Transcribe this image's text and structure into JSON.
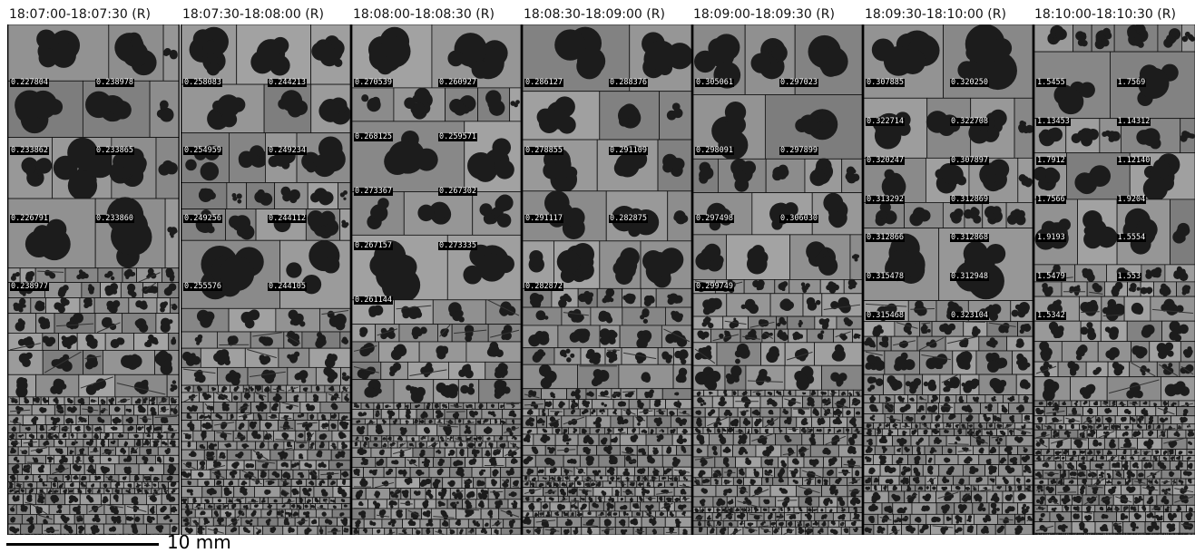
{
  "panels": [
    {
      "title": "18:07:00-18:07:30 (R)",
      "labels": [
        "0.227804",
        "0.238978",
        "0.233862",
        "0.233865",
        "0.226791",
        "0.233860",
        "0.238977"
      ]
    },
    {
      "title": "18:07:30-18:08:00 (R)",
      "labels": [
        "0.258083",
        "0.244213",
        "0.254959",
        "0.249234",
        "0.249256",
        "0.244112",
        "0.255576",
        "0.244105"
      ]
    },
    {
      "title": "18:08:00-18:08:30 (R)",
      "labels": [
        "0.270539",
        "0.260927",
        "0.268125",
        "0.259571",
        "0.273367",
        "0.267302",
        "0.267157",
        "0.273335",
        "0.261144"
      ]
    },
    {
      "title": "18:08:30-18:09:00 (R)",
      "labels": [
        "0.286127",
        "0.288376",
        "0.278855",
        "0.291109",
        "0.291117",
        "0.282875",
        "0.282872"
      ]
    },
    {
      "title": "18:09:00-18:09:30 (R)",
      "labels": [
        "0.305061",
        "0.297023",
        "0.298091",
        "0.297899",
        "0.297498",
        "0.306030",
        "0.299749"
      ]
    },
    {
      "title": "18:09:30-18:10:00 (R)",
      "labels": [
        "0.307885",
        "0.320250",
        "0.322714",
        "0.322708",
        "0.320247",
        "0.307897",
        "0.313292",
        "0.312869",
        "0.312866",
        "0.312868",
        "0.315478",
        "0.312948",
        "0.315468",
        "0.323104"
      ]
    },
    {
      "title": "18:10:00-18:10:30 (R)",
      "labels": [
        "1.5455",
        "1.7569",
        "1.13453",
        "1.14312",
        "1.7912",
        "1.12140",
        "1.7566",
        "1.9204",
        "1.9193",
        "1.5554",
        "1.5479",
        "1.553",
        "1.5342"
      ]
    }
  ],
  "scale": {
    "label": "10 mm"
  }
}
